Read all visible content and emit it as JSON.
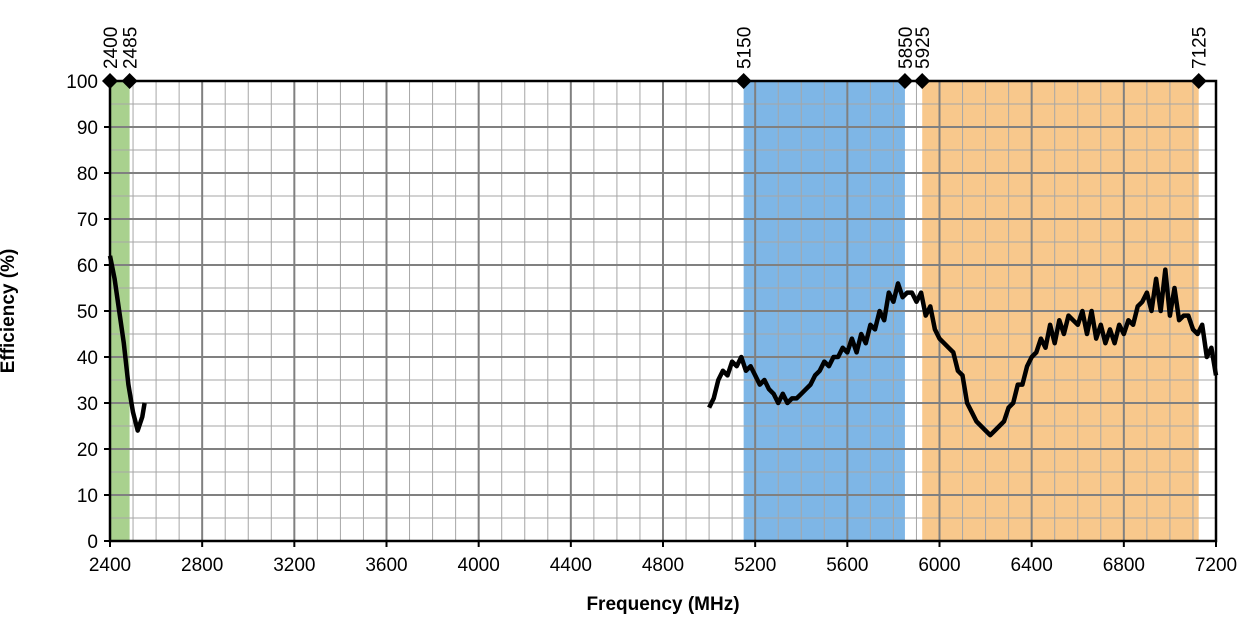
{
  "chart_data": {
    "type": "line",
    "xlabel": "Frequency (MHz)",
    "ylabel": "Efficiency (%)",
    "xlim": [
      2400,
      7200
    ],
    "xticks": [
      2400,
      2800,
      3200,
      3600,
      4000,
      4400,
      4800,
      5200,
      5600,
      6000,
      6400,
      6800,
      7200
    ],
    "ylim": [
      0,
      100
    ],
    "yticks": [
      0,
      10,
      20,
      30,
      40,
      50,
      60,
      70,
      80,
      90,
      100
    ],
    "grid": true,
    "bands": [
      {
        "from": 2400,
        "to": 2485,
        "color": "#a9d18e"
      },
      {
        "from": 5150,
        "to": 5850,
        "color": "#7eb6e6"
      },
      {
        "from": 5925,
        "to": 7125,
        "color": "#f8c88c"
      }
    ],
    "markers": [
      2400,
      2485,
      5150,
      5850,
      5925,
      7125
    ],
    "x": [
      2400,
      2420,
      2440,
      2460,
      2480,
      2500,
      2520,
      2540,
      2550,
      2600,
      5000,
      5020,
      5040,
      5060,
      5080,
      5100,
      5120,
      5140,
      5160,
      5180,
      5200,
      5220,
      5240,
      5260,
      5280,
      5300,
      5320,
      5340,
      5360,
      5380,
      5400,
      5420,
      5440,
      5460,
      5480,
      5500,
      5520,
      5540,
      5560,
      5580,
      5600,
      5620,
      5640,
      5660,
      5680,
      5700,
      5720,
      5740,
      5760,
      5780,
      5800,
      5820,
      5840,
      5860,
      5880,
      5900,
      5920,
      5940,
      5960,
      5980,
      6000,
      6020,
      6040,
      6060,
      6080,
      6100,
      6120,
      6140,
      6160,
      6180,
      6200,
      6220,
      6240,
      6260,
      6280,
      6300,
      6320,
      6340,
      6360,
      6380,
      6400,
      6420,
      6440,
      6460,
      6480,
      6500,
      6520,
      6540,
      6560,
      6580,
      6600,
      6620,
      6640,
      6660,
      6680,
      6700,
      6720,
      6740,
      6760,
      6780,
      6800,
      6820,
      6840,
      6860,
      6880,
      6900,
      6920,
      6940,
      6960,
      6980,
      7000,
      7020,
      7040,
      7060,
      7080,
      7100,
      7120,
      7140,
      7160,
      7180,
      7200
    ],
    "series": [
      {
        "color": "#000000",
        "values": [
          62,
          57,
          50,
          43,
          34,
          28,
          24,
          27,
          30,
          null,
          29,
          31,
          35,
          37,
          36,
          39,
          38,
          40,
          37,
          38,
          36,
          34,
          35,
          33,
          32,
          30,
          32,
          30,
          31,
          31,
          32,
          33,
          34,
          36,
          37,
          39,
          38,
          40,
          40,
          42,
          41,
          44,
          41,
          45,
          43,
          47,
          46,
          50,
          48,
          54,
          52,
          56,
          53,
          54,
          54,
          52,
          54,
          49,
          51,
          46,
          44,
          43,
          42,
          41,
          37,
          36,
          30,
          28,
          26,
          25,
          24,
          23,
          24,
          25,
          26,
          29,
          30,
          34,
          34,
          38,
          40,
          41,
          44,
          42,
          47,
          43,
          48,
          45,
          49,
          48,
          47,
          50,
          45,
          50,
          44,
          47,
          43,
          46,
          43,
          47,
          45,
          48,
          47,
          51,
          52,
          54,
          50,
          57,
          50,
          59,
          49,
          55,
          48,
          49,
          49,
          46,
          45,
          47,
          40,
          42,
          36
        ]
      }
    ]
  }
}
